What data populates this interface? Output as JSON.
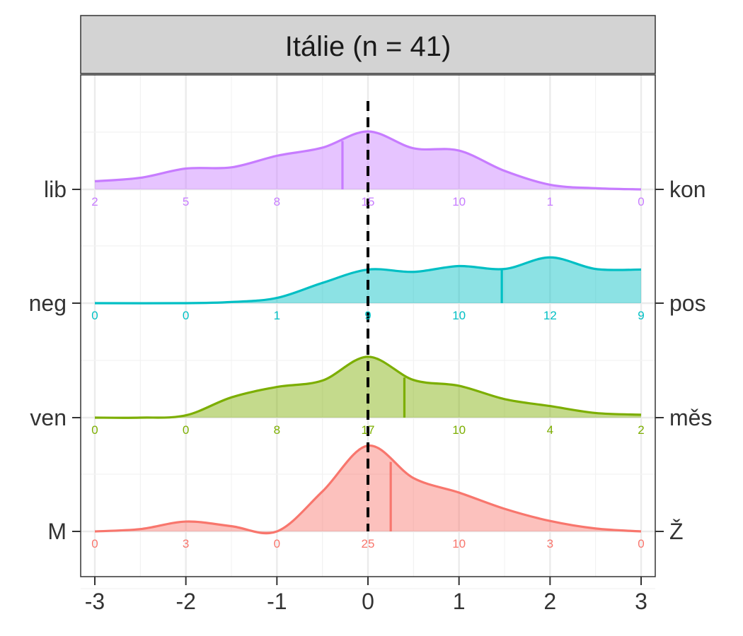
{
  "chart_data": {
    "type": "ridgeline density",
    "title": "Itálie (n = 41)",
    "xlim": [
      -3,
      3
    ],
    "x_ticks": [
      "-3",
      "-2",
      "-1",
      "0",
      "1",
      "2",
      "3"
    ],
    "count_positions": [
      -3,
      -2,
      -1,
      0,
      1,
      2,
      3
    ],
    "reference_line": 0,
    "grid": true,
    "series": [
      {
        "left_label": "lib",
        "right_label": "kon",
        "color": "#C77CFF",
        "mean": -0.28,
        "counts": [
          "2",
          "5",
          "8",
          "15",
          "10",
          "1",
          "0"
        ],
        "density": [
          [
            -3,
            0.14
          ],
          [
            -2.5,
            0.2
          ],
          [
            -2,
            0.36
          ],
          [
            -1.5,
            0.38
          ],
          [
            -1,
            0.58
          ],
          [
            -0.5,
            0.72
          ],
          [
            0,
            1.0
          ],
          [
            0.5,
            0.71
          ],
          [
            1,
            0.67
          ],
          [
            1.5,
            0.32
          ],
          [
            2,
            0.08
          ],
          [
            2.5,
            0.02
          ],
          [
            3,
            0.0
          ]
        ]
      },
      {
        "left_label": "neg",
        "right_label": "pos",
        "color": "#00BFC4",
        "mean": 1.47,
        "counts": [
          "0",
          "0",
          "1",
          "9",
          "10",
          "12",
          "9"
        ],
        "density": [
          [
            -3,
            0.0
          ],
          [
            -2,
            0.0
          ],
          [
            -1.5,
            0.02
          ],
          [
            -1,
            0.09
          ],
          [
            -0.5,
            0.35
          ],
          [
            0,
            0.58
          ],
          [
            0.5,
            0.54
          ],
          [
            1,
            0.64
          ],
          [
            1.5,
            0.59
          ],
          [
            2,
            0.79
          ],
          [
            2.5,
            0.59
          ],
          [
            3,
            0.58
          ]
        ]
      },
      {
        "left_label": "ven",
        "right_label": "měs",
        "color": "#7CAE00",
        "mean": 0.4,
        "counts": [
          "0",
          "0",
          "8",
          "17",
          "10",
          "4",
          "2"
        ],
        "density": [
          [
            -3,
            0.0
          ],
          [
            -2.5,
            0.0
          ],
          [
            -2,
            0.04
          ],
          [
            -1.5,
            0.35
          ],
          [
            -1,
            0.53
          ],
          [
            -0.5,
            0.64
          ],
          [
            0,
            1.05
          ],
          [
            0.5,
            0.65
          ],
          [
            1,
            0.55
          ],
          [
            1.5,
            0.32
          ],
          [
            2,
            0.2
          ],
          [
            2.5,
            0.08
          ],
          [
            3,
            0.05
          ]
        ]
      },
      {
        "left_label": "M",
        "right_label": "Ž",
        "color": "#F8766D",
        "mean": 0.25,
        "counts": [
          "0",
          "3",
          "0",
          "25",
          "10",
          "3",
          "0"
        ],
        "density": [
          [
            -3,
            0.0
          ],
          [
            -2.5,
            0.04
          ],
          [
            -2,
            0.17
          ],
          [
            -1.5,
            0.09
          ],
          [
            -1,
            0.0
          ],
          [
            -0.5,
            0.69
          ],
          [
            0,
            1.48
          ],
          [
            0.5,
            0.92
          ],
          [
            1,
            0.67
          ],
          [
            1.5,
            0.39
          ],
          [
            2,
            0.18
          ],
          [
            2.5,
            0.05
          ],
          [
            3,
            0.0
          ]
        ]
      }
    ]
  }
}
